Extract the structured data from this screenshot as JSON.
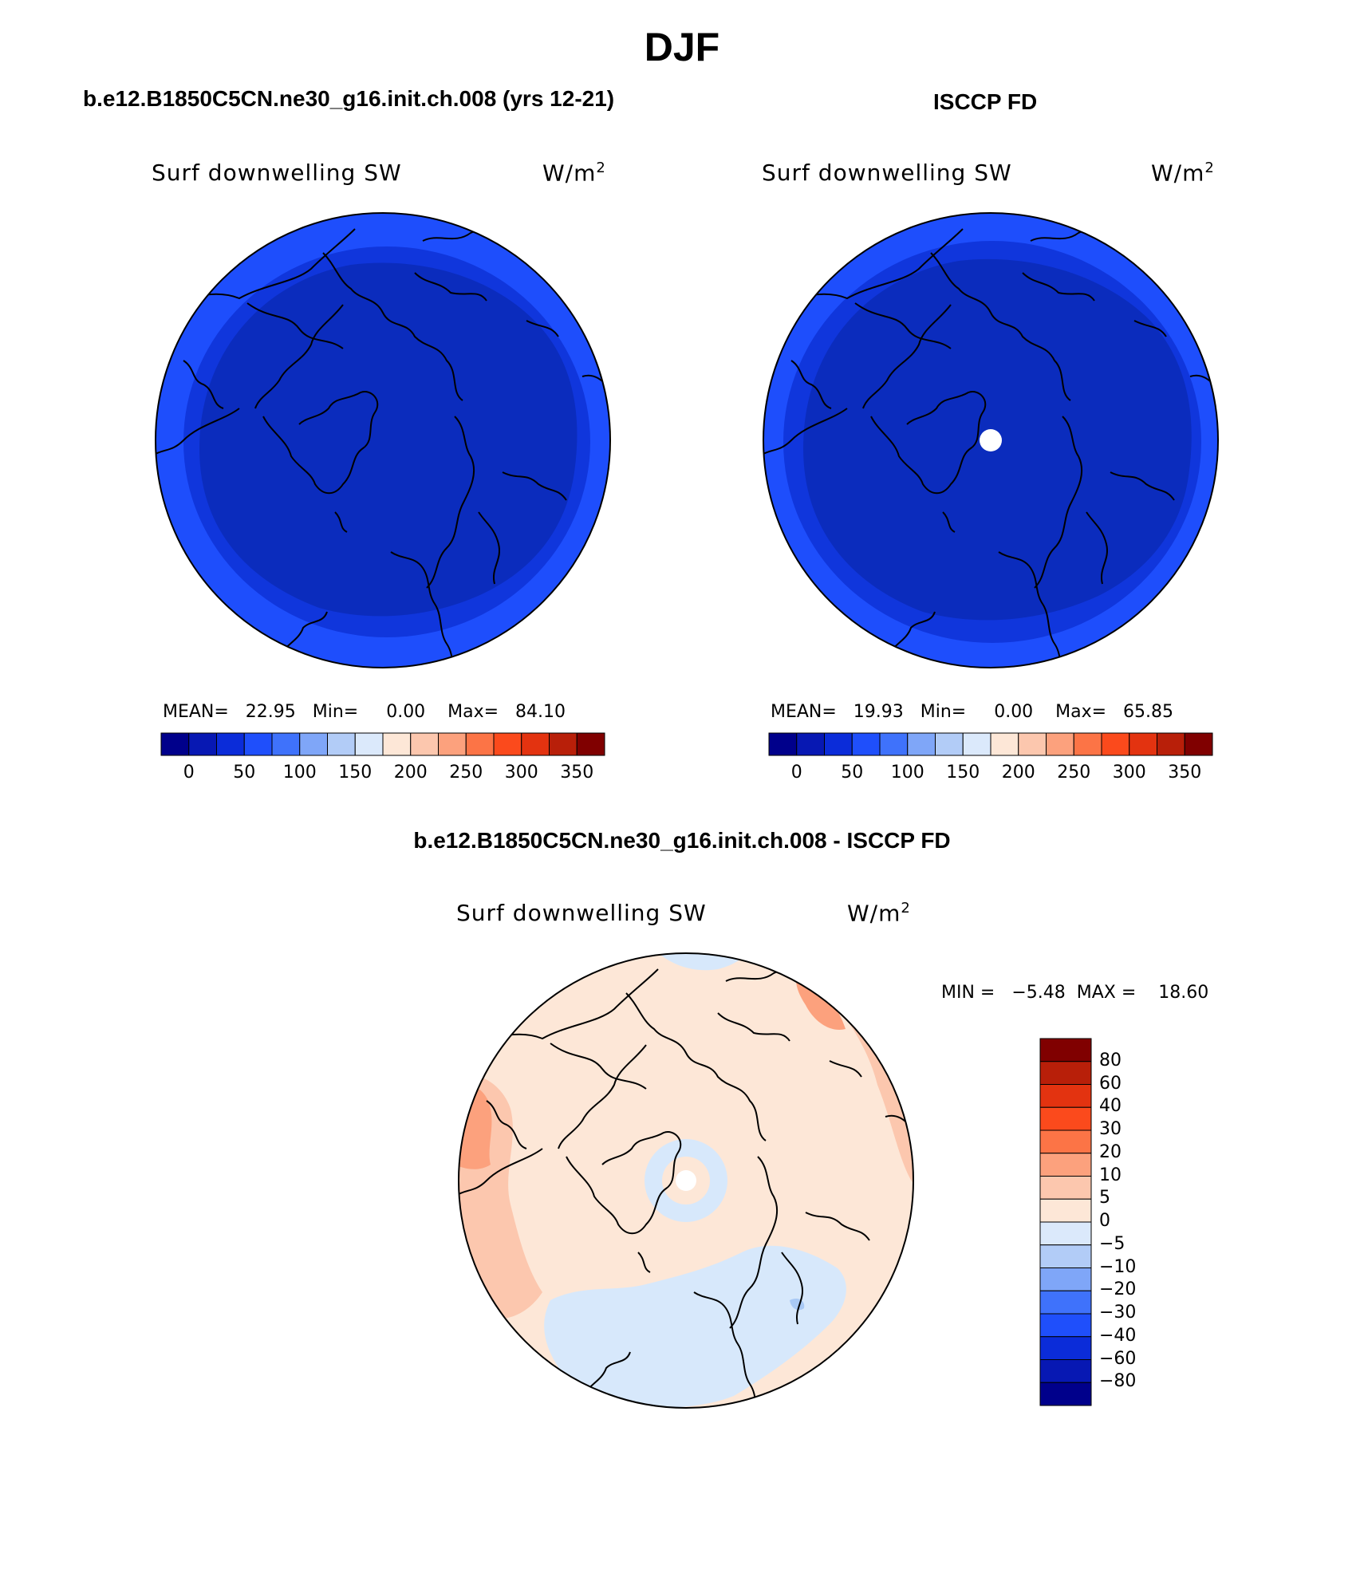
{
  "figure": {
    "title": "DJF",
    "season": "DJF"
  },
  "colors": {
    "model_outer": "#1e4efc",
    "model_inner": "#0b2cbd",
    "model_mid": "#0f37d9",
    "diff_base": "#fde7d7",
    "diff_warm": "#fcb08d",
    "diff_warmer": "#fb9070",
    "diff_cool": "#d7e8fb",
    "diff_cooler": "#a9c9f5"
  },
  "panels": [
    {
      "id": "model",
      "title": "b.e12.B1850C5CN.ne30_g16.init.ch.008 (yrs 12-21)",
      "variable": "Surf downwelling SW",
      "units_base": "W/m",
      "units_exp": "2",
      "stats": "MEAN=   22.95   Min=     0.00    Max=   84.10"
    },
    {
      "id": "obs",
      "title": "ISCCP FD",
      "variable": "Surf downwelling SW",
      "units_base": "W/m",
      "units_exp": "2",
      "stats": "MEAN=   19.93   Min=     0.00    Max=   65.85"
    },
    {
      "id": "diff",
      "title": "b.e12.B1850C5CN.ne30_g16.init.ch.008 - ISCCP FD",
      "variable": "Surf downwelling SW",
      "units_base": "W/m",
      "units_exp": "2",
      "stats": "MIN =   −5.48  MAX =    18.60"
    }
  ],
  "colorbar_main": {
    "colors": [
      "#00008b",
      "#0718b3",
      "#0b2cd9",
      "#1f4ffb",
      "#3f72fb",
      "#7fa6f8",
      "#b2ccf7",
      "#dbe9fb",
      "#fde7d7",
      "#fcc7ae",
      "#fca17d",
      "#fc7446",
      "#fb4a1c",
      "#e33310",
      "#b81f09",
      "#800000"
    ],
    "ticks": [
      "0",
      "50",
      "100",
      "150",
      "200",
      "250",
      "300",
      "350"
    ]
  },
  "colorbar_diff": {
    "colors": [
      "#800000",
      "#b81f09",
      "#e33310",
      "#fb4a1c",
      "#fc7446",
      "#fca17d",
      "#fcc7ae",
      "#fde7d7",
      "#dbe9fb",
      "#b2ccf7",
      "#7fa6f8",
      "#3f72fb",
      "#1f4ffb",
      "#0b2cd9",
      "#0718b3",
      "#00008b"
    ],
    "ticks": [
      "80",
      "60",
      "40",
      "30",
      "20",
      "10",
      "5",
      "0",
      "−5",
      "−10",
      "−20",
      "−30",
      "−40",
      "−60",
      "−80"
    ]
  }
}
